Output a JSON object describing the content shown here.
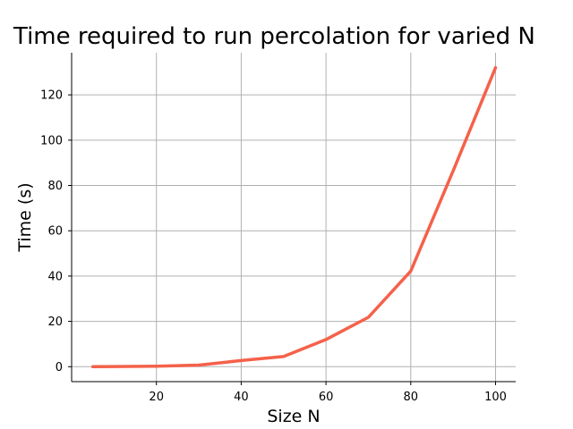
{
  "chart_data": {
    "type": "line",
    "title": "Time required to run percolation for varied N",
    "xlabel": "Size N",
    "ylabel": "Time (s)",
    "xlim": [
      0,
      104.75
    ],
    "ylim": [
      -6.6,
      138.6
    ],
    "xticks": [
      20,
      40,
      60,
      80,
      100
    ],
    "yticks": [
      0,
      20,
      40,
      60,
      80,
      100,
      120
    ],
    "grid": true,
    "legend": "none",
    "series": [
      {
        "color": "#f5614a",
        "x": [
          5,
          10,
          20,
          30,
          40,
          50,
          60,
          70,
          80,
          90,
          100
        ],
        "y": [
          0.0,
          0.05,
          0.2,
          0.7,
          2.7,
          4.5,
          12.0,
          21.8,
          42.2,
          86.5,
          132.0
        ]
      }
    ]
  }
}
